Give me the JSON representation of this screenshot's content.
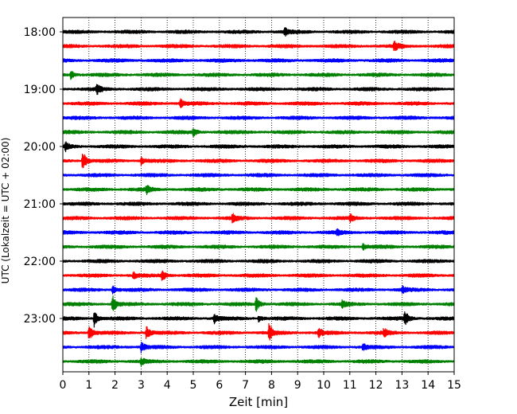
{
  "chart_data": {
    "type": "line",
    "title": "",
    "xlabel": "Zeit  [min]",
    "ylabel": "UTC (Lokalzeit = UTC + 02:00)",
    "xlim": [
      0,
      15
    ],
    "x_ticks": [
      0,
      1,
      2,
      3,
      4,
      5,
      6,
      7,
      8,
      9,
      10,
      11,
      12,
      13,
      14,
      15
    ],
    "grid": "vertical dotted",
    "legend": "none",
    "colors": [
      "#000000",
      "#ff0000",
      "#0000ff",
      "#008000"
    ],
    "y_tick_labels": [
      "18:00",
      "19:00",
      "20:00",
      "21:00",
      "22:00",
      "23:00"
    ],
    "traces": [
      {
        "start": "18:00",
        "color": "#000000",
        "events": [
          {
            "t": 8.5,
            "amp": 5
          }
        ]
      },
      {
        "start": "18:15",
        "color": "#ff0000",
        "events": [
          {
            "t": 12.7,
            "amp": 6
          }
        ]
      },
      {
        "start": "18:30",
        "color": "#0000ff",
        "events": []
      },
      {
        "start": "18:45",
        "color": "#008000",
        "events": [
          {
            "t": 0.3,
            "amp": 5
          }
        ]
      },
      {
        "start": "19:00",
        "color": "#000000",
        "events": [
          {
            "t": 1.3,
            "amp": 6
          }
        ]
      },
      {
        "start": "19:15",
        "color": "#ff0000",
        "events": [
          {
            "t": 4.5,
            "amp": 5
          }
        ]
      },
      {
        "start": "19:30",
        "color": "#0000ff",
        "events": []
      },
      {
        "start": "19:45",
        "color": "#008000",
        "events": [
          {
            "t": 5.0,
            "amp": 5
          }
        ]
      },
      {
        "start": "20:00",
        "color": "#000000",
        "events": [
          {
            "t": 0.1,
            "amp": 5
          }
        ]
      },
      {
        "start": "20:15",
        "color": "#ff0000",
        "events": [
          {
            "t": 0.75,
            "amp": 13
          },
          {
            "t": 3.0,
            "amp": 5
          }
        ]
      },
      {
        "start": "20:30",
        "color": "#0000ff",
        "events": []
      },
      {
        "start": "20:45",
        "color": "#008000",
        "events": [
          {
            "t": 3.2,
            "amp": 5
          }
        ]
      },
      {
        "start": "21:00",
        "color": "#000000",
        "events": []
      },
      {
        "start": "21:15",
        "color": "#ff0000",
        "events": [
          {
            "t": 6.5,
            "amp": 5
          },
          {
            "t": 11.0,
            "amp": 5
          }
        ]
      },
      {
        "start": "21:30",
        "color": "#0000ff",
        "events": [
          {
            "t": 10.5,
            "amp": 4
          }
        ]
      },
      {
        "start": "21:45",
        "color": "#008000",
        "events": [
          {
            "t": 11.5,
            "amp": 4
          }
        ]
      },
      {
        "start": "22:00",
        "color": "#000000",
        "events": []
      },
      {
        "start": "22:15",
        "color": "#ff0000",
        "events": [
          {
            "t": 3.8,
            "amp": 8
          },
          {
            "t": 2.7,
            "amp": 4
          }
        ]
      },
      {
        "start": "22:30",
        "color": "#0000ff",
        "events": [
          {
            "t": 1.9,
            "amp": 5
          },
          {
            "t": 13.0,
            "amp": 4
          }
        ]
      },
      {
        "start": "22:45",
        "color": "#008000",
        "events": [
          {
            "t": 1.9,
            "amp": 11
          },
          {
            "t": 7.4,
            "amp": 9
          },
          {
            "t": 10.7,
            "amp": 4
          }
        ]
      },
      {
        "start": "23:00",
        "color": "#000000",
        "events": [
          {
            "t": 1.2,
            "amp": 10
          },
          {
            "t": 5.8,
            "amp": 6
          },
          {
            "t": 7.5,
            "amp": 4
          },
          {
            "t": 13.1,
            "amp": 10
          }
        ]
      },
      {
        "start": "23:15",
        "color": "#ff0000",
        "events": [
          {
            "t": 1.0,
            "amp": 10
          },
          {
            "t": 3.2,
            "amp": 8
          },
          {
            "t": 7.9,
            "amp": 11
          },
          {
            "t": 9.8,
            "amp": 6
          },
          {
            "t": 12.3,
            "amp": 5
          }
        ]
      },
      {
        "start": "23:30",
        "color": "#0000ff",
        "events": [
          {
            "t": 3.0,
            "amp": 6
          },
          {
            "t": 11.5,
            "amp": 4
          }
        ]
      },
      {
        "start": "23:45",
        "color": "#008000",
        "events": [
          {
            "t": 3.0,
            "amp": 4
          }
        ]
      }
    ]
  }
}
